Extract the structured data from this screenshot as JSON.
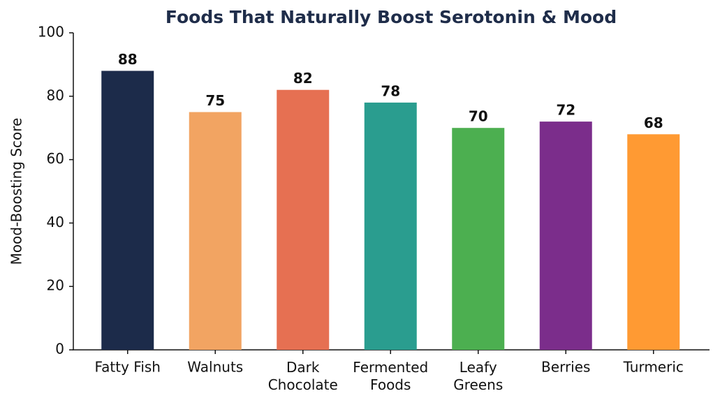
{
  "chart_data": {
    "type": "bar",
    "title": "Foods That Naturally Boost Serotonin & Mood",
    "ylabel": "Mood-Boosting Score",
    "categories": [
      "Fatty Fish",
      "Walnuts",
      "Dark\nChocolate",
      "Fermented\nFoods",
      "Leafy\nGreens",
      "Berries",
      "Turmeric"
    ],
    "values": [
      88,
      75,
      82,
      78,
      70,
      72,
      68
    ],
    "colors": [
      "#1c2b4a",
      "#f2a462",
      "#e67052",
      "#2a9d8f",
      "#4caf50",
      "#7b2d8b",
      "#ff9a33"
    ],
    "ylim": [
      0,
      100
    ],
    "yticks": [
      0,
      20,
      40,
      60,
      80,
      100
    ],
    "grid": false
  }
}
